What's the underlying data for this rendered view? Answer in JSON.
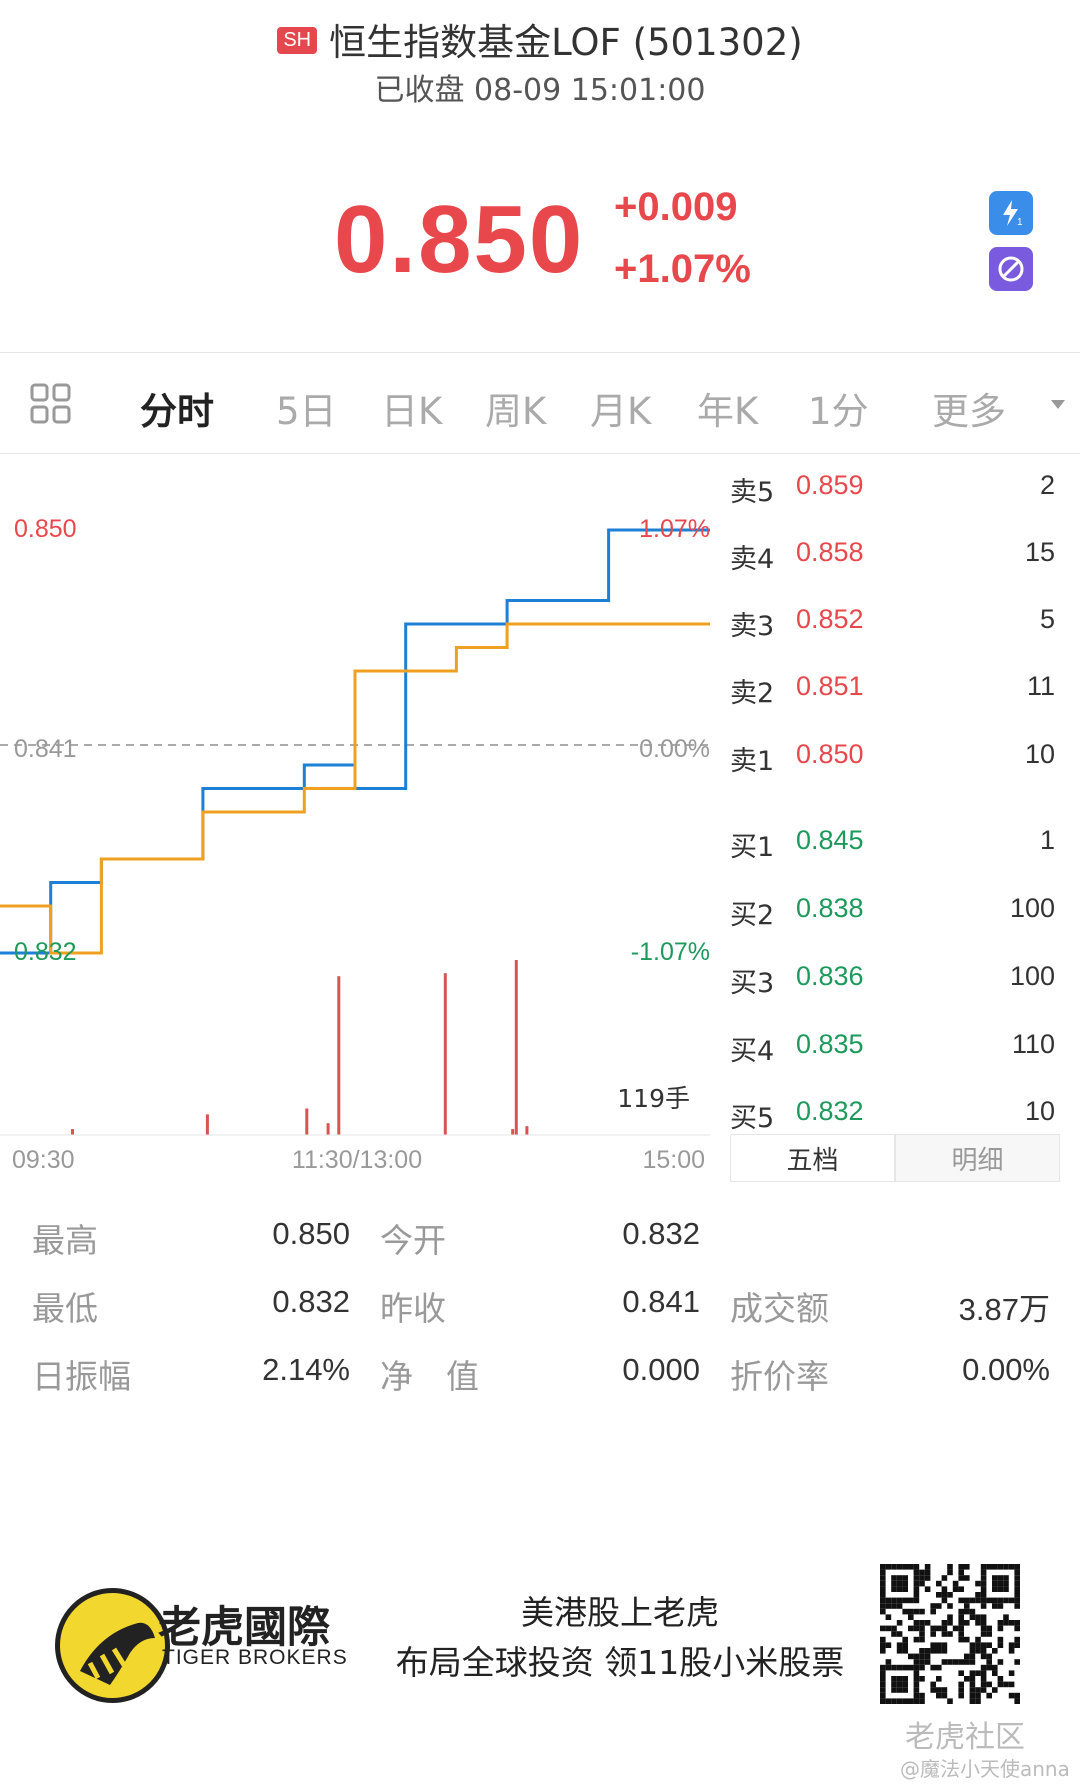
{
  "header": {
    "exchange_badge": "SH",
    "title": "恒生指数基金LOF (501302)",
    "status": "已收盘 08-09 15:01:00"
  },
  "quote": {
    "price": "0.850",
    "change": "+0.009",
    "change_pct": "+1.07%",
    "up_color": "#e8474c"
  },
  "side_buttons": [
    "flash-icon",
    "ban-icon"
  ],
  "tabs": [
    "分时",
    "5日",
    "日K",
    "周K",
    "月K",
    "年K",
    "1分",
    "更多"
  ],
  "chart": {
    "high_label": "0.850",
    "high_pct": "1.07%",
    "mid_label": "0.841",
    "mid_pct": "0.00%",
    "low_label": "0.832",
    "low_pct": "-1.07%",
    "volume_label": "119手",
    "time_start": "09:30",
    "time_mid": "11:30/13:00",
    "time_end": "15:00"
  },
  "chart_data": {
    "type": "line",
    "ylim": [
      0.832,
      0.85
    ],
    "series": [
      {
        "color": "#1e7fd6",
        "values": [
          0.832,
          0.835,
          0.836,
          0.836,
          0.839,
          0.839,
          0.84,
          0.839,
          0.846,
          0.846,
          0.847,
          0.847,
          0.85,
          0.85
        ]
      },
      {
        "color": "#f0a020",
        "values": [
          0.834,
          0.832,
          0.836,
          0.836,
          0.838,
          0.838,
          0.839,
          0.844,
          0.844,
          0.845,
          0.846,
          0.846,
          0.846,
          0.846
        ]
      }
    ],
    "volume_bars": [
      {
        "t": 0.1,
        "v": 4
      },
      {
        "t": 0.29,
        "v": 14
      },
      {
        "t": 0.43,
        "v": 18
      },
      {
        "t": 0.46,
        "v": 8
      },
      {
        "t": 0.475,
        "v": 108
      },
      {
        "t": 0.625,
        "v": 110
      },
      {
        "t": 0.72,
        "v": 4
      },
      {
        "t": 0.725,
        "v": 119
      },
      {
        "t": 0.74,
        "v": 6
      }
    ]
  },
  "order_book": {
    "asks": [
      {
        "label": "卖5",
        "price": "0.859",
        "vol": "2"
      },
      {
        "label": "卖4",
        "price": "0.858",
        "vol": "15"
      },
      {
        "label": "卖3",
        "price": "0.852",
        "vol": "5"
      },
      {
        "label": "卖2",
        "price": "0.851",
        "vol": "11"
      },
      {
        "label": "卖1",
        "price": "0.850",
        "vol": "10"
      }
    ],
    "bids": [
      {
        "label": "买1",
        "price": "0.845",
        "vol": "1"
      },
      {
        "label": "买2",
        "price": "0.838",
        "vol": "100"
      },
      {
        "label": "买3",
        "price": "0.836",
        "vol": "100"
      },
      {
        "label": "买4",
        "price": "0.835",
        "vol": "110"
      },
      {
        "label": "买5",
        "price": "0.832",
        "vol": "10"
      }
    ],
    "tab_five": "五档",
    "tab_detail": "明细",
    "ask_color": "#e8474c",
    "bid_color": "#1d9a5b"
  },
  "stats": {
    "high_label": "最高",
    "high": "0.850",
    "open_label": "今开",
    "open": "0.832",
    "low_label": "最低",
    "low": "0.832",
    "prev_label": "昨收",
    "prev": "0.841",
    "turnover_label": "成交额",
    "turnover": "3.87万",
    "amp_label": "日振幅",
    "amp": "2.14%",
    "nav_label": "净　值",
    "nav": "0.000",
    "discount_label": "折价率",
    "discount": "0.00%"
  },
  "footer": {
    "brand_cn": "老虎國際",
    "brand_en": "TIGER BROKERS",
    "promo_line1": "美港股上老虎",
    "promo_line2": "布局全球投资 领11股小米股票",
    "watermark": "老虎社区",
    "watermark_user": "@魔法小天使anna"
  }
}
